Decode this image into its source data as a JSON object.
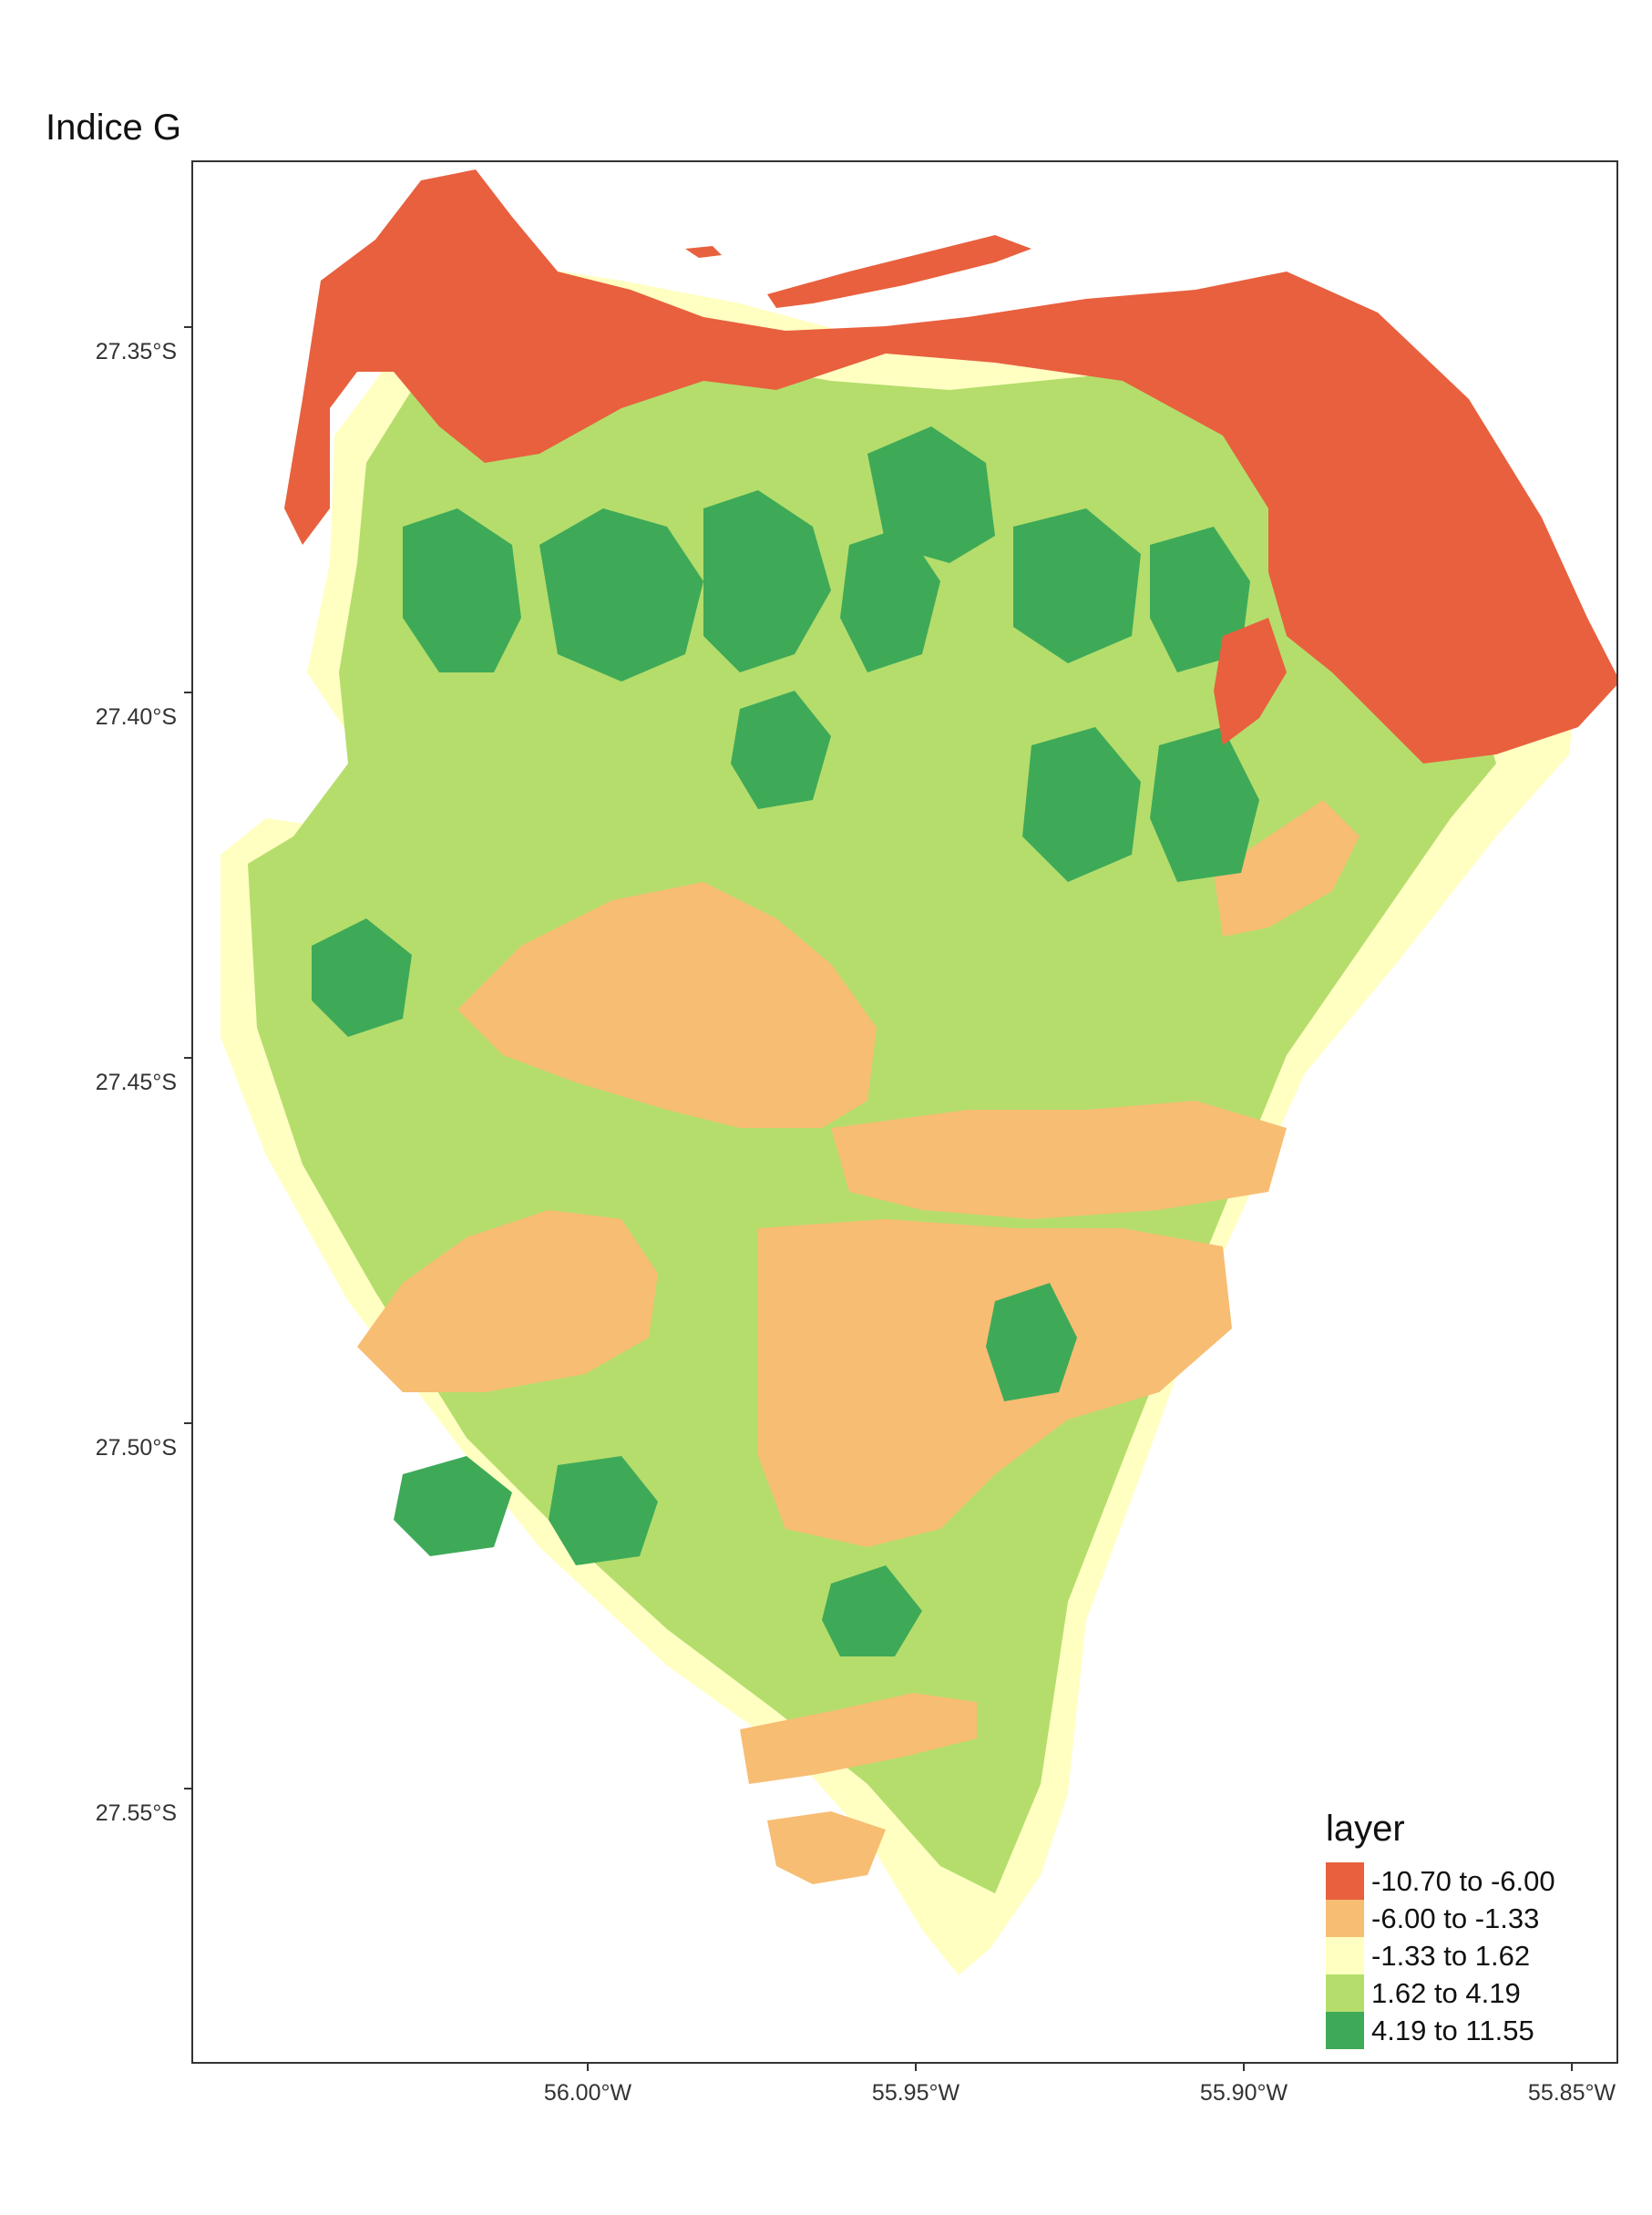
{
  "title": "Indice G",
  "y_ticks": [
    "27.35°S",
    "27.40°S",
    "27.45°S",
    "27.50°S",
    "27.55°S"
  ],
  "x_ticks": [
    "56.00°W",
    "55.95°W",
    "55.90°W",
    "55.85°W"
  ],
  "legend": {
    "title": "layer",
    "items": [
      {
        "label": "-10.70 to -6.00",
        "color": "#e8603e"
      },
      {
        "label": "-6.00 to -1.33",
        "color": "#f7bd73"
      },
      {
        "label": "-1.33 to 1.62",
        "color": "#ffffc2"
      },
      {
        "label": "1.62 to 4.19",
        "color": "#b5dd6c"
      },
      {
        "label": "4.19 to 11.55",
        "color": "#3eaa58"
      }
    ]
  }
}
